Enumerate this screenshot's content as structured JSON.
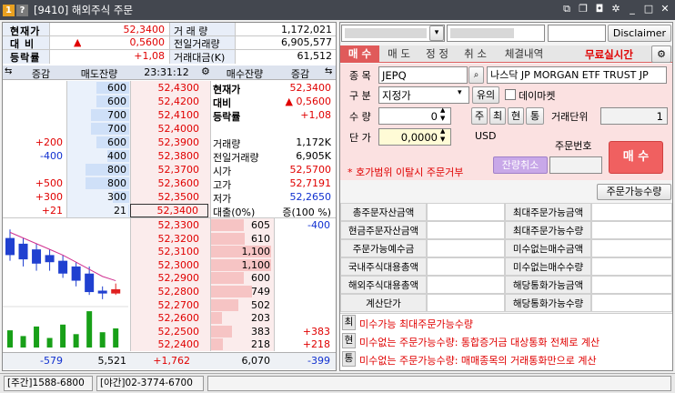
{
  "title": {
    "badge1": "1",
    "badge2": "?",
    "text": "[9410] 해외주식 주문"
  },
  "summary": {
    "rows": [
      {
        "label": "현재가",
        "value": "52,3400",
        "mark": "",
        "label2": "거 래 량",
        "value2": "1,172,021"
      },
      {
        "label": "대  비",
        "value": "0,5600",
        "mark": "▲",
        "label2": "전일거래량",
        "value2": "6,905,577"
      },
      {
        "label": "등락률",
        "value": "+1,08",
        "mark": "",
        "label2": "거래대금(K)",
        "value2": "61,512"
      }
    ]
  },
  "orderbook": {
    "header": {
      "change": "증감",
      "ask_qty": "매도잔량",
      "time": "23:31:12",
      "bid_qty": "매수잔량",
      "change2": "증감"
    },
    "asks": [
      {
        "chg": "",
        "qty": "600",
        "price": "52,4300"
      },
      {
        "chg": "",
        "qty": "600",
        "price": "52,4200"
      },
      {
        "chg": "",
        "qty": "700",
        "price": "52,4100"
      },
      {
        "chg": "",
        "qty": "700",
        "price": "52,4000"
      },
      {
        "chg": "+200",
        "qty": "600",
        "price": "52,3900"
      },
      {
        "chg": "-400",
        "qty": "400",
        "price": "52,3800"
      },
      {
        "chg": "",
        "qty": "800",
        "price": "52,3700"
      },
      {
        "chg": "+500",
        "qty": "800",
        "price": "52,3600"
      },
      {
        "chg": "+300",
        "qty": "300",
        "price": "52,3500"
      },
      {
        "chg": "+21",
        "qty": "21",
        "price": "52,3400"
      }
    ],
    "bids": [
      {
        "price": "52,3300",
        "qty": "605",
        "chg": "-400"
      },
      {
        "price": "52,3200",
        "qty": "610",
        "chg": ""
      },
      {
        "price": "52,3100",
        "qty": "1,100",
        "chg": ""
      },
      {
        "price": "52,3000",
        "qty": "1,100",
        "chg": ""
      },
      {
        "price": "52,2900",
        "qty": "600",
        "chg": ""
      },
      {
        "price": "52,2800",
        "qty": "749",
        "chg": ""
      },
      {
        "price": "52,2700",
        "qty": "502",
        "chg": ""
      },
      {
        "price": "52,2600",
        "qty": "203",
        "chg": ""
      },
      {
        "price": "52,2500",
        "qty": "383",
        "chg": "+383"
      },
      {
        "price": "52,2400",
        "qty": "218",
        "chg": "+218"
      }
    ],
    "info_top": [
      {
        "label": "현재가",
        "value": "52,3400"
      },
      {
        "label": "대비",
        "value": "▲ 0,5600"
      },
      {
        "label": "등락률",
        "value": "+1,08"
      }
    ],
    "info_mid": [
      {
        "label": "거래량",
        "value": "1,172K"
      },
      {
        "label": "전일거래량",
        "value": "6,905K"
      },
      {
        "label": "시가",
        "value": "52,5700"
      },
      {
        "label": "고가",
        "value": "52,7191"
      },
      {
        "label": "저가",
        "value": "52,2650"
      },
      {
        "label": "대출(0%)",
        "value": "증(100 %)"
      }
    ],
    "footer": {
      "ask_chg": "-579",
      "ask_total": "5,521",
      "mid": "+1,762",
      "bid_total": "6,070",
      "bid_chg": "-399"
    }
  },
  "order": {
    "account_placeholder": "",
    "disclaimer_label": "Disclaimer",
    "tabs": [
      "매 수",
      "매 도",
      "정 정",
      "취 소",
      "체결내역"
    ],
    "free_label": "무료실시간",
    "stock_label": "종 목",
    "stock_code": "JEPQ",
    "stock_name": "나스닥  JP MORGAN ETF TRUST JP",
    "type_label": "구 분",
    "type_value": "지정가",
    "type_btn": "유의",
    "daymarket_label": "데이마켓",
    "qty_label": "수 량",
    "qty_value": "0",
    "qty_btns": [
      "주",
      "최",
      "현",
      "통"
    ],
    "unit_label": "거래단위",
    "unit_value": "1",
    "price_label": "단 가",
    "price_value": "0,0000",
    "currency": "USD",
    "remain_cancel": "잔량취소",
    "order_no_label": "주문번호",
    "buy_button": "매 수",
    "warning": "* 호가범위 이탈시 주문거부",
    "avail_btn": "주문가능수량",
    "grid": [
      [
        "총주문자산금액",
        "",
        "최대주문가능금액",
        ""
      ],
      [
        "현금주문자산금액",
        "",
        "최대주문가능수량",
        ""
      ],
      [
        "주문가능예수금",
        "",
        "미수없는매수금액",
        ""
      ],
      [
        "국내주식대용총액",
        "",
        "미수없는매수수량",
        ""
      ],
      [
        "해외주식대용총액",
        "",
        "해당통화가능금액",
        ""
      ],
      [
        "계산단가",
        "",
        "해당통화가능수량",
        ""
      ]
    ],
    "notes": [
      {
        "tag": "최",
        "text": "미수가능 최대주문가능수량"
      },
      {
        "tag": "현",
        "text": "미수없는 주문가능수량: 통합증거금 대상통화 전체로 계산"
      },
      {
        "tag": "통",
        "text": "미수없는 주문가능수량: 매매종목의 거래통화만으로 계산"
      }
    ]
  },
  "status": {
    "day": "[주간]1588-6800",
    "night": "[야간]02-3774-6700"
  },
  "chart_data": {
    "type": "candlestick",
    "candles": [
      {
        "o": 52.7,
        "h": 52.76,
        "l": 52.54,
        "c": 52.58
      },
      {
        "o": 52.66,
        "h": 52.7,
        "l": 52.5,
        "c": 52.55
      },
      {
        "o": 52.62,
        "h": 52.66,
        "l": 52.47,
        "c": 52.52
      },
      {
        "o": 52.58,
        "h": 52.62,
        "l": 52.47,
        "c": 52.53
      },
      {
        "o": 52.54,
        "h": 52.58,
        "l": 52.42,
        "c": 52.45
      },
      {
        "o": 52.5,
        "h": 52.53,
        "l": 52.36,
        "c": 52.4
      },
      {
        "o": 52.45,
        "h": 52.5,
        "l": 52.3,
        "c": 52.32
      },
      {
        "o": 52.33,
        "h": 52.36,
        "l": 52.27,
        "c": 52.31
      },
      {
        "o": 52.31,
        "h": 52.38,
        "l": 52.3,
        "c": 52.34
      }
    ],
    "ma": [
      52.74,
      52.7,
      52.66,
      52.62,
      52.58,
      52.53,
      52.48,
      52.43,
      52.4
    ],
    "volume": [
      0.45,
      0.3,
      0.55,
      0.25,
      0.6,
      0.35,
      0.95,
      0.4,
      0.5
    ],
    "colors": {
      "up": "#e02020",
      "down": "#2040d0",
      "ma": "#d03090",
      "vol": "#18a018"
    }
  }
}
